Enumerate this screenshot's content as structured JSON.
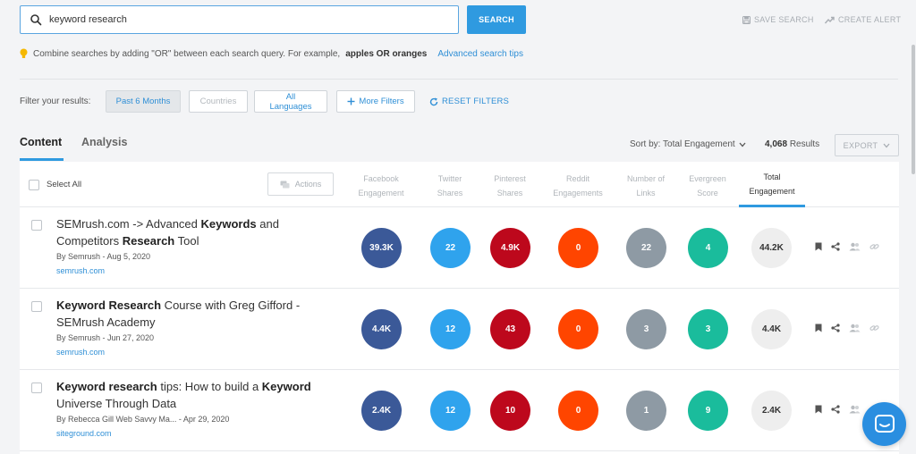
{
  "search": {
    "value": "keyword research",
    "button_label": "SEARCH",
    "save_label": "SAVE SEARCH",
    "alert_label": "CREATE ALERT"
  },
  "tip": {
    "text_prefix": "Combine searches by adding \"OR\" between each search query. For example,",
    "example": "apples OR oranges",
    "link": "Advanced search tips"
  },
  "filters": {
    "label": "Filter your results:",
    "date": "Past 6 Months",
    "countries": "Countries",
    "languages": "All Languages",
    "more": "More Filters",
    "reset": "RESET FILTERS"
  },
  "tabs": {
    "content": "Content",
    "analysis": "Analysis"
  },
  "sort": {
    "label": "Sort by: Total Engagement",
    "count": "4,068",
    "results_label": "Results",
    "export": "EXPORT"
  },
  "table": {
    "select_all": "Select All",
    "actions": "Actions",
    "columns": [
      {
        "line1": "Facebook",
        "line2": "Engagement"
      },
      {
        "line1": "Twitter",
        "line2": "Shares"
      },
      {
        "line1": "Pinterest",
        "line2": "Shares"
      },
      {
        "line1": "Reddit",
        "line2": "Engagements"
      },
      {
        "line1": "Number of",
        "line2": "Links"
      },
      {
        "line1": "Evergreen",
        "line2": "Score"
      },
      {
        "line1": "Total",
        "line2": "Engagement"
      }
    ],
    "rows": [
      {
        "title_a": "SEMrush.com -> Advanced ",
        "title_b": "Keywords",
        "title_c": " and Competitors ",
        "title_d": "Research",
        "title_e": " Tool",
        "by": "By Semrush - Aug 5, 2020",
        "domain": "semrush.com",
        "facebook": "39.3K",
        "twitter": "22",
        "pinterest": "4.9K",
        "reddit": "0",
        "links": "22",
        "evergreen": "4",
        "total": "44.2K"
      },
      {
        "title_a": "",
        "title_b": "Keyword Research",
        "title_c": " Course with Greg Gifford - SEMrush Academy",
        "title_d": "",
        "title_e": "",
        "by": "By Semrush - Jun 27, 2020",
        "domain": "semrush.com",
        "facebook": "4.4K",
        "twitter": "12",
        "pinterest": "43",
        "reddit": "0",
        "links": "3",
        "evergreen": "3",
        "total": "4.4K"
      },
      {
        "title_a": "",
        "title_b": "Keyword research",
        "title_c": " tips: How to build a ",
        "title_d": "Keyword",
        "title_e": " Universe Through Data",
        "by": "By Rebecca Gill Web Savvy Ma... - Apr 29, 2020",
        "domain": "siteground.com",
        "facebook": "2.4K",
        "twitter": "12",
        "pinterest": "10",
        "reddit": "0",
        "links": "1",
        "evergreen": "9",
        "total": "2.4K"
      }
    ]
  },
  "colors": {
    "accent": "#2f9ae0",
    "facebook": "#3b5998",
    "twitter": "#2fa3ed",
    "pinterest": "#bd081c",
    "reddit": "#ff4500",
    "links": "#8e9aa4",
    "evergreen": "#1abc9c"
  }
}
